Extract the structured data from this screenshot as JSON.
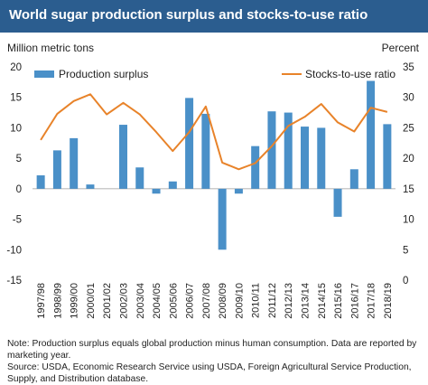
{
  "title": "World sugar production surplus and stocks-to-use ratio",
  "chart_data": {
    "type": "bar+line",
    "categories": [
      "1997/98",
      "1998/99",
      "1999/00",
      "2000/01",
      "2001/02",
      "2002/03",
      "2003/04",
      "2004/05",
      "2005/06",
      "2006/07",
      "2007/08",
      "2008/09",
      "2009/10",
      "2010/11",
      "2011/12",
      "2012/13",
      "2013/14",
      "2014/15",
      "2015/16",
      "2016/17",
      "2017/18",
      "2018/19"
    ],
    "y_left": {
      "label": "Million metric tons",
      "range": [
        -15,
        20
      ],
      "ticks": [
        -15,
        -10,
        -5,
        0,
        5,
        10,
        15,
        20
      ]
    },
    "y_right": {
      "label": "Percent",
      "range": [
        0,
        35
      ],
      "ticks": [
        0,
        5,
        10,
        15,
        20,
        25,
        30,
        35
      ]
    },
    "series": [
      {
        "name": "Production surplus",
        "type": "bar",
        "axis": "left",
        "color": "#4a90c8",
        "values": [
          2.2,
          6.3,
          8.3,
          0.7,
          0.0,
          10.5,
          3.5,
          -0.8,
          1.2,
          14.9,
          12.3,
          -10.0,
          -0.8,
          7.0,
          12.7,
          12.5,
          10.2,
          10.0,
          -4.6,
          3.2,
          17.7,
          10.6
        ]
      },
      {
        "name": "Stocks-to-use ratio",
        "type": "line",
        "axis": "right",
        "color": "#e8832a",
        "values": [
          23.0,
          27.3,
          29.4,
          30.5,
          27.2,
          29.1,
          27.2,
          24.3,
          21.2,
          24.3,
          28.5,
          19.3,
          18.2,
          19.2,
          22.0,
          25.3,
          26.8,
          28.9,
          25.9,
          24.4,
          28.3,
          27.6
        ]
      }
    ],
    "legend": [
      "top-left",
      "top-right"
    ],
    "grid": false
  },
  "notes": [
    "Note: Production surplus equals global production minus human consumption. Data are reported by marketing year.",
    "Source: USDA, Economic Research Service using USDA, Foreign Agricultural Service Production, Supply, and Distribution database."
  ]
}
